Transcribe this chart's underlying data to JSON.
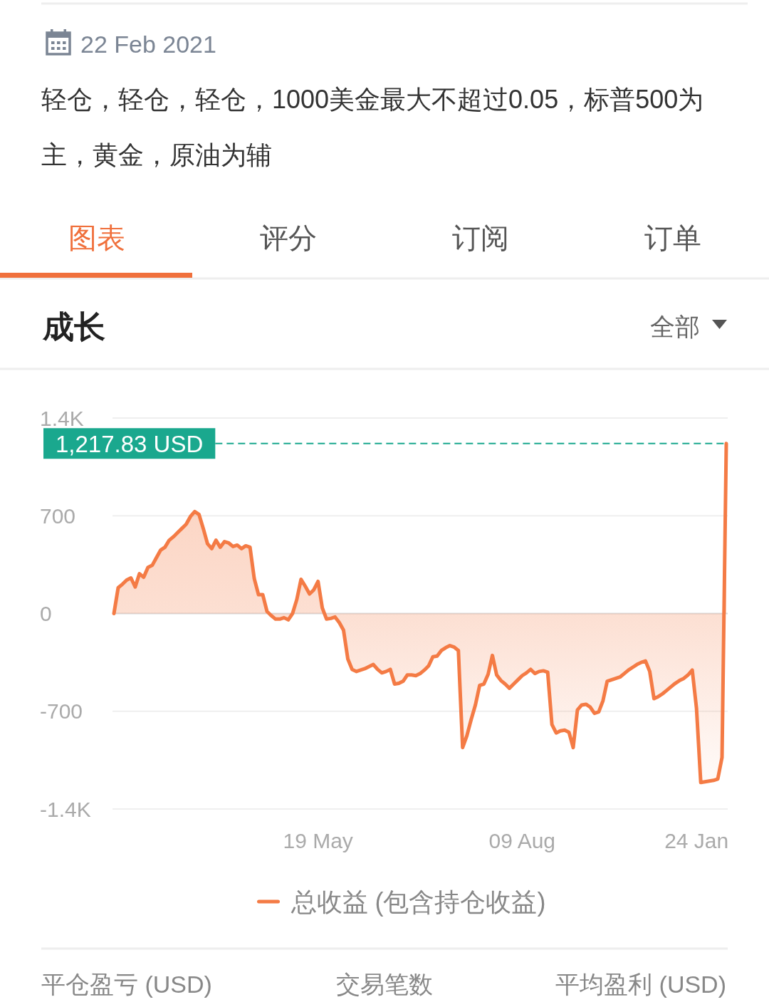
{
  "chart_data": {
    "type": "area",
    "title": "成长",
    "annotations": [
      "22 Feb 2021",
      "轻仓，轻仓，轻仓，1000美金最大不超过0.05，标普500为主，黄金，原油为辅",
      "图表",
      "评分",
      "订阅",
      "订单",
      "全部",
      "平仓盈亏 (USD)",
      "交易笔数",
      "平均盈利 (USD)"
    ],
    "categories": [
      null,
      null,
      null,
      null,
      null,
      null,
      null,
      null,
      null,
      null,
      null,
      null,
      null,
      null,
      null,
      null,
      null,
      null,
      null,
      null,
      null,
      null,
      null,
      null,
      null,
      null,
      null,
      null,
      null,
      null,
      null,
      null,
      null,
      null,
      null,
      null,
      null,
      null,
      null,
      null,
      null,
      null,
      null,
      null,
      null,
      null,
      null,
      null,
      "19 May",
      null,
      null,
      null,
      null,
      null,
      null,
      null,
      null,
      null,
      null,
      null,
      null,
      null,
      null,
      null,
      null,
      null,
      null,
      null,
      null,
      null,
      null,
      null,
      null,
      null,
      null,
      null,
      null,
      null,
      null,
      null,
      null,
      null,
      null,
      null,
      null,
      null,
      null,
      null,
      null,
      null,
      null,
      null,
      null,
      null,
      null,
      null,
      "09 Aug",
      null,
      null,
      null,
      null,
      null,
      null,
      null,
      null,
      null,
      null,
      null,
      null,
      null,
      null,
      null,
      null,
      null,
      null,
      null,
      null,
      null,
      null,
      null,
      null,
      null,
      null,
      null,
      null,
      null,
      null,
      null,
      null,
      null,
      null,
      null,
      null,
      null,
      null,
      null,
      null,
      "24 Jan",
      null,
      null,
      null,
      null,
      null,
      null,
      null
    ],
    "series": [
      {
        "name": "总收益 (包含持仓收益)",
        "color": "#f47b45",
        "values": [
          0,
          185,
          210,
          240,
          255,
          190,
          285,
          260,
          330,
          345,
          400,
          455,
          475,
          525,
          550,
          580,
          610,
          640,
          695,
          730,
          710,
          610,
          500,
          465,
          525,
          475,
          515,
          505,
          480,
          490,
          465,
          485,
          475,
          250,
          135,
          135,
          15,
          -15,
          -40,
          -40,
          -30,
          -45,
          0,
          100,
          245,
          195,
          140,
          170,
          230,
          40,
          -40,
          -35,
          -25,
          -65,
          -120,
          -325,
          -400,
          -415,
          -405,
          -395,
          -380,
          -365,
          -400,
          -425,
          -415,
          -400,
          -505,
          -500,
          -485,
          -440,
          -440,
          -445,
          -430,
          -405,
          -375,
          -310,
          -305,
          -265,
          -245,
          -230,
          -240,
          -265,
          -960,
          -875,
          -760,
          -655,
          -515,
          -505,
          -435,
          -300,
          -440,
          -480,
          -505,
          -535,
          -505,
          -475,
          -445,
          -425,
          -400,
          -430,
          -415,
          -410,
          -420,
          -795,
          -855,
          -840,
          -835,
          -850,
          -960,
          -690,
          -655,
          -650,
          -670,
          -715,
          -705,
          -625,
          -485,
          -475,
          -465,
          -455,
          -430,
          -405,
          -385,
          -365,
          -350,
          -340,
          -415,
          -610,
          -595,
          -575,
          -550,
          -525,
          -500,
          -480,
          -465,
          -440,
          -405,
          -680,
          -1210,
          -1205,
          -1200,
          -1195,
          -1185,
          -1030,
          1217.83
        ]
      }
    ],
    "ylim": [
      -1400,
      1400
    ],
    "yticks": [
      {
        "value": 1400,
        "label": "1.4K"
      },
      700,
      0,
      -700,
      {
        "value": -1400,
        "label": "-1.4K"
      }
    ],
    "grid": "y",
    "legend": "bottom",
    "ref_lines": [
      {
        "axis": "y",
        "value": 1217.83,
        "label": "1,217.83 USD",
        "color": "#1aa88e",
        "line_style": "dashed"
      }
    ]
  }
}
